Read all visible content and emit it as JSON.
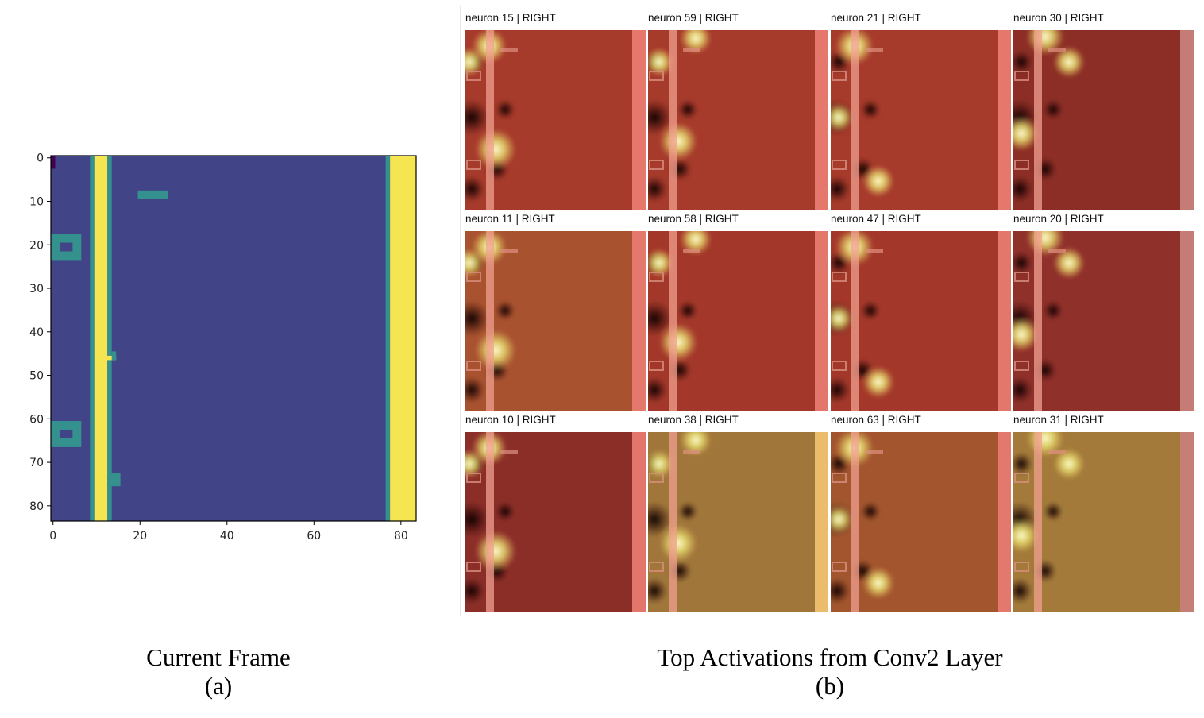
{
  "panel_a": {
    "caption_title": "Current Frame",
    "caption_label": "(a)",
    "y_ticks": [
      "0",
      "10",
      "20",
      "30",
      "40",
      "50",
      "60",
      "70",
      "80"
    ],
    "x_ticks": [
      "0",
      "20",
      "40",
      "60",
      "80"
    ],
    "colors": {
      "background": "#414487",
      "bright": "#f5e551",
      "mid": "#35918e",
      "dark": "#440154"
    }
  },
  "panel_b": {
    "caption_title": "Top Activations from Conv2 Layer",
    "caption_label": "(b)",
    "cells": [
      {
        "title": "neuron 15 | RIGHT",
        "tint": "#a63a2b"
      },
      {
        "title": "neuron 59 | RIGHT",
        "tint": "#a63a2b"
      },
      {
        "title": "neuron 21 | RIGHT",
        "tint": "#a63a2b"
      },
      {
        "title": "neuron 30 | RIGHT",
        "tint": "#8c2e25"
      },
      {
        "title": "neuron 11 | RIGHT",
        "tint": "#a8522f"
      },
      {
        "title": "neuron 58 | RIGHT",
        "tint": "#a3382a"
      },
      {
        "title": "neuron 47 | RIGHT",
        "tint": "#a3382a"
      },
      {
        "title": "neuron 20 | RIGHT",
        "tint": "#90302a"
      },
      {
        "title": "neuron 10 | RIGHT",
        "tint": "#8c2e28"
      },
      {
        "title": "neuron 38 | RIGHT",
        "tint": "#a0763a"
      },
      {
        "title": "neuron 63 | RIGHT",
        "tint": "#a3562e"
      },
      {
        "title": "neuron 31 | RIGHT",
        "tint": "#a37a3a"
      }
    ]
  }
}
